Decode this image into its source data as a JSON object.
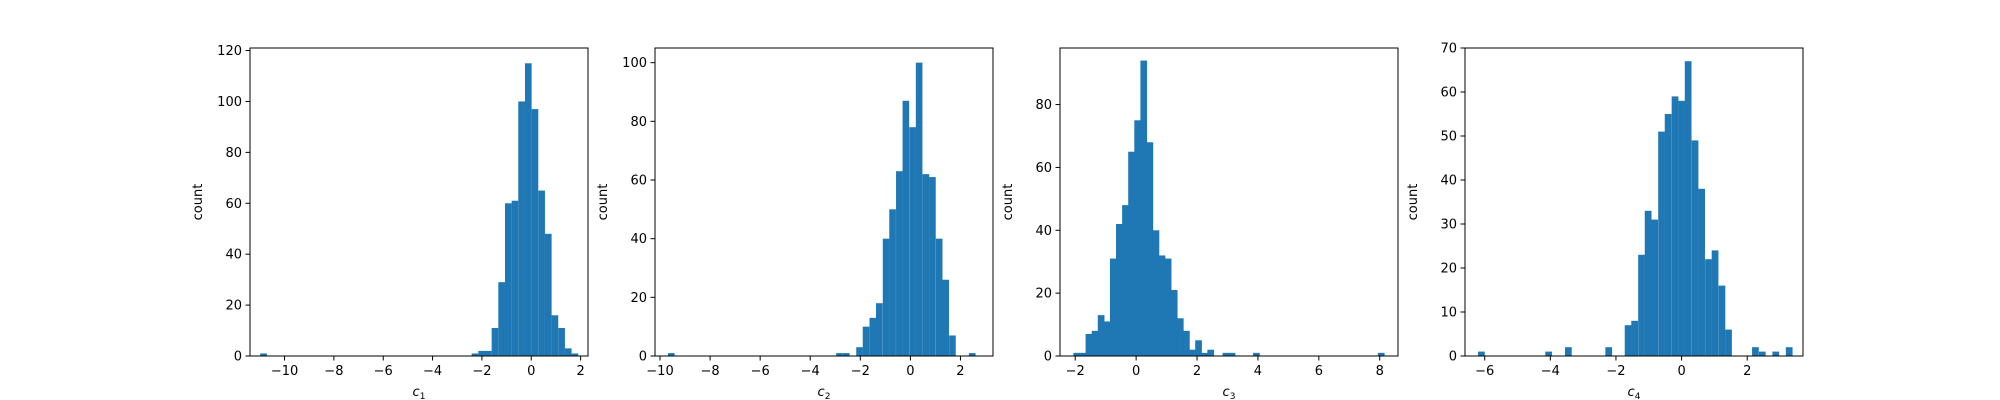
{
  "colors": {
    "bar": "#1f77b4",
    "axis": "#000000",
    "background": "#ffffff"
  },
  "chart_data": [
    {
      "type": "bar",
      "xlabel_base": "c",
      "xlabel_sub": "1",
      "ylabel": "count",
      "xlim": [
        -11.4,
        2.3
      ],
      "ylim": [
        0,
        121
      ],
      "xticks": [
        -10,
        -8,
        -6,
        -4,
        -2,
        0,
        2
      ],
      "yticks": [
        0,
        20,
        40,
        60,
        80,
        100,
        120
      ],
      "bin_width": 0.27,
      "bin_centers": [
        -10.85,
        -2.28,
        -2.01,
        -1.74,
        -1.47,
        -1.2,
        -0.93,
        -0.66,
        -0.39,
        -0.12,
        0.15,
        0.42,
        0.69,
        0.96,
        1.23,
        1.5,
        1.77
      ],
      "values": [
        1,
        1,
        2,
        2,
        11,
        29,
        60,
        61,
        100,
        115,
        97,
        65,
        48,
        16,
        11,
        3,
        1
      ]
    },
    {
      "type": "bar",
      "xlabel_base": "c",
      "xlabel_sub": "2",
      "ylabel": "count",
      "xlim": [
        -10.2,
        3.3
      ],
      "ylim": [
        0,
        105
      ],
      "xticks": [
        -10,
        -8,
        -6,
        -4,
        -2,
        0,
        2
      ],
      "yticks": [
        0,
        20,
        40,
        60,
        80,
        100
      ],
      "bin_width": 0.265,
      "bin_centers": [
        -9.55,
        -2.83,
        -2.56,
        -2.03,
        -1.77,
        -1.5,
        -1.24,
        -0.97,
        -0.71,
        -0.44,
        -0.18,
        0.09,
        0.35,
        0.62,
        0.88,
        1.15,
        1.41,
        1.68,
        2.47
      ],
      "values": [
        1,
        1,
        1,
        3,
        10,
        13,
        18,
        40,
        50,
        63,
        87,
        78,
        100,
        62,
        61,
        40,
        26,
        7,
        1
      ]
    },
    {
      "type": "bar",
      "xlabel_base": "c",
      "xlabel_sub": "3",
      "ylabel": "count",
      "xlim": [
        -2.5,
        8.6
      ],
      "ylim": [
        0,
        98
      ],
      "xticks": [
        -2,
        0,
        2,
        4,
        6,
        8
      ],
      "yticks": [
        0,
        20,
        40,
        60,
        80
      ],
      "bin_width": 0.22,
      "bin_centers": [
        -1.95,
        -1.75,
        -1.55,
        -1.35,
        -1.15,
        -0.95,
        -0.75,
        -0.55,
        -0.35,
        -0.15,
        0.05,
        0.25,
        0.45,
        0.65,
        0.85,
        1.05,
        1.25,
        1.45,
        1.65,
        1.85,
        2.05,
        2.25,
        2.45,
        2.95,
        3.15,
        3.95,
        8.05
      ],
      "values": [
        1,
        1,
        7,
        8,
        13,
        11,
        31,
        42,
        48,
        65,
        75,
        94,
        68,
        40,
        32,
        31,
        21,
        12,
        8,
        2,
        5,
        1,
        2,
        1,
        1,
        1,
        1
      ]
    },
    {
      "type": "bar",
      "xlabel_base": "c",
      "xlabel_sub": "4",
      "ylabel": "count",
      "xlim": [
        -6.6,
        3.7
      ],
      "ylim": [
        0,
        70
      ],
      "xticks": [
        -6,
        -4,
        -2,
        0,
        2
      ],
      "yticks": [
        0,
        10,
        20,
        30,
        40,
        50,
        60,
        70
      ],
      "bin_width": 0.205,
      "bin_centers": [
        -6.1,
        -4.05,
        -3.45,
        -2.22,
        -1.63,
        -1.43,
        -1.22,
        -1.02,
        -0.82,
        -0.61,
        -0.41,
        -0.2,
        0.0,
        0.2,
        0.41,
        0.61,
        0.82,
        1.02,
        1.23,
        1.43,
        2.25,
        2.46,
        2.87,
        3.28
      ],
      "values": [
        1,
        1,
        2,
        2,
        7,
        8,
        23,
        33,
        31,
        51,
        55,
        59,
        58,
        67,
        49,
        38,
        22,
        24,
        16,
        6,
        2,
        1,
        1,
        2
      ]
    }
  ]
}
